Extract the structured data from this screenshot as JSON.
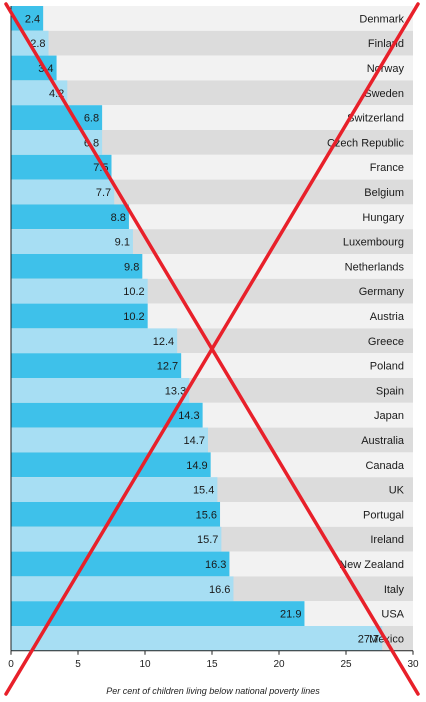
{
  "chart_data": {
    "type": "bar",
    "orientation": "horizontal",
    "xlabel": "Per cent of children living below national poverty lines",
    "xlim": [
      0,
      30
    ],
    "xticks": [
      0,
      5,
      10,
      15,
      20,
      25,
      30
    ],
    "categories": [
      "Denmark",
      "Finland",
      "Norway",
      "Sweden",
      "Switzerland",
      "Czech Republic",
      "France",
      "Belgium",
      "Hungary",
      "Luxembourg",
      "Netherlands",
      "Germany",
      "Austria",
      "Greece",
      "Poland",
      "Spain",
      "Japan",
      "Australia",
      "Canada",
      "UK",
      "Portugal",
      "Ireland",
      "New Zealand",
      "Italy",
      "USA",
      "Mexico"
    ],
    "values": [
      2.4,
      2.8,
      3.4,
      4.2,
      6.8,
      6.8,
      7.5,
      7.7,
      8.8,
      9.1,
      9.8,
      10.2,
      10.2,
      12.4,
      12.7,
      13.3,
      14.3,
      14.7,
      14.9,
      15.4,
      15.6,
      15.7,
      16.3,
      16.6,
      21.9,
      27.7
    ],
    "value_labels": [
      "2.4",
      "2.8",
      "3.4",
      "4.2",
      "6.8",
      "6.8",
      "7.5",
      "7.7",
      "8.8",
      "9.1",
      "9.8",
      "10.2",
      "10.2",
      "12.4",
      "12.7",
      "13.3",
      "14.3",
      "14.7",
      "14.9",
      "15.4",
      "15.6",
      "15.7",
      "16.3",
      "16.6",
      "21.9",
      "27.7"
    ],
    "colors": {
      "bar_dark": "#3ec1ea",
      "bar_light": "#a7def3",
      "bg_light": "#f2f2f2",
      "bg_dark": "#dcdcdc",
      "cross": "#e8202a"
    },
    "overlay": "red-cross"
  }
}
